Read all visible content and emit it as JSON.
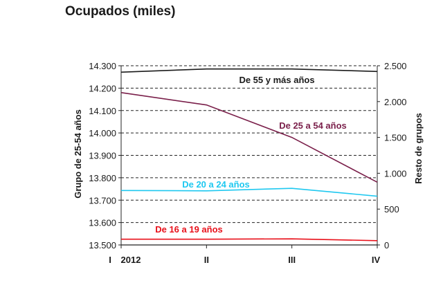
{
  "chart_data": {
    "type": "line",
    "title": "Ocupados (miles)",
    "categories": [
      "I",
      "II",
      "III",
      "IV"
    ],
    "year_label": "2012",
    "y_left": {
      "label": "Grupo de 25-54 años",
      "range": [
        13500,
        14300
      ],
      "ticks": [
        13500,
        13600,
        13700,
        13800,
        13900,
        14000,
        14100,
        14200,
        14300
      ],
      "tick_labels": [
        "13.500",
        "13.600",
        "13.700",
        "13.800",
        "13.900",
        "14.000",
        "14.100",
        "14.200",
        "14.300"
      ]
    },
    "y_right": {
      "label": "Resto de grupos",
      "range": [
        0,
        2500
      ],
      "ticks": [
        0,
        500,
        1000,
        1500,
        2000,
        2500
      ],
      "tick_labels": [
        "0",
        "500",
        "1.000",
        "1.500",
        "2.000",
        "2.500"
      ]
    },
    "grid": "horizontal-dashed",
    "series": [
      {
        "name": "De 55 y más años",
        "axis": "right",
        "color": "#1a1a1a",
        "values": [
          2410,
          2455,
          2455,
          2420
        ]
      },
      {
        "name": "De 25 a 54 años",
        "axis": "left",
        "color": "#7a1f4a",
        "values": [
          14180,
          14125,
          13980,
          13780
        ]
      },
      {
        "name": "De 20 a 24 años",
        "axis": "right",
        "color": "#1ec8f0",
        "values": [
          760,
          755,
          790,
          680
        ]
      },
      {
        "name": "De 16 a 19 años",
        "axis": "right",
        "color": "#e8101a",
        "values": [
          80,
          80,
          85,
          60
        ]
      }
    ]
  }
}
